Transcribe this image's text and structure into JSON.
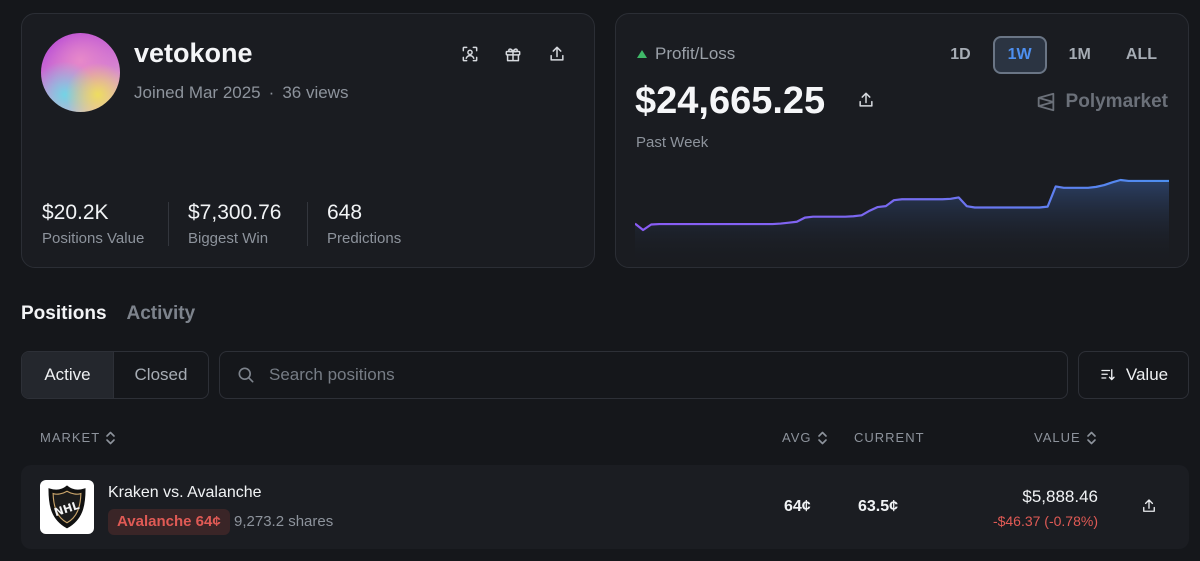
{
  "profile": {
    "username": "vetokone",
    "joined": "Joined Mar 2025",
    "separator": "·",
    "views": "36 views",
    "actions": [
      "scan-icon",
      "gift-icon",
      "share-icon"
    ],
    "stats": [
      {
        "value": "$20.2K",
        "label": "Positions Value"
      },
      {
        "value": "$7,300.76",
        "label": "Biggest Win"
      },
      {
        "value": "648",
        "label": "Predictions"
      }
    ]
  },
  "pnl": {
    "label": "Profit/Loss",
    "value": "$24,665.25",
    "period": "Past Week",
    "brand": "Polymarket",
    "ranges": [
      "1D",
      "1W",
      "1M",
      "ALL"
    ],
    "active_range": "1W",
    "colors": {
      "line_start": "#8b5cf6",
      "line_end": "#4d8ff0",
      "up": "#3fb868"
    }
  },
  "chart_data": {
    "type": "line",
    "series": [
      {
        "values": [
          1.8,
          0.4,
          1.6,
          1.7,
          1.7,
          1.7,
          1.7,
          1.7,
          1.7,
          1.7,
          1.7,
          1.7,
          1.7,
          1.7,
          1.7,
          1.7,
          1.7,
          1.7,
          1.8,
          2.0,
          2.2,
          3.1,
          3.3,
          3.3,
          3.3,
          3.3,
          3.3,
          3.4,
          3.6,
          4.6,
          5.4,
          5.6,
          6.9,
          7.1,
          7.1,
          7.1,
          7.1,
          7.1,
          7.1,
          7.2,
          7.5,
          5.6,
          5.3,
          5.3,
          5.3,
          5.3,
          5.3,
          5.3,
          5.3,
          5.3,
          5.3,
          5.5,
          9.9,
          9.6,
          9.6,
          9.6,
          9.6,
          9.8,
          10.2,
          10.8,
          11.3,
          11.1,
          11.1,
          11.1,
          11.1,
          11.1,
          11.1
        ]
      }
    ]
  },
  "tabs": [
    {
      "label": "Positions",
      "active": true
    },
    {
      "label": "Activity",
      "active": false
    }
  ],
  "filters": {
    "active": "Active",
    "closed": "Closed",
    "search_placeholder": "Search positions",
    "sort_label": "Value"
  },
  "table": {
    "headers": {
      "market": "MARKET",
      "avg": "AVG",
      "current": "CURRENT",
      "value": "VALUE"
    },
    "rows": [
      {
        "logo": "nhl-logo-icon",
        "title": "Kraken vs. Avalanche",
        "outcome": "Avalanche 64¢",
        "shares": "9,273.2 shares",
        "avg": "64¢",
        "current": "63.5¢",
        "value": "$5,888.46",
        "change": "-$46.37 (-0.78%)"
      }
    ]
  }
}
